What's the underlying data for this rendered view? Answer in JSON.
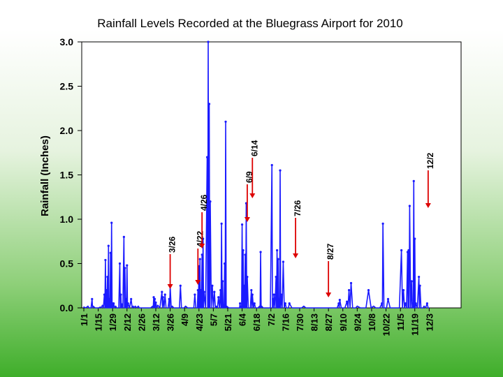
{
  "chart_data": {
    "type": "line",
    "title": "Rainfall Levels Recorded at the Bluegrass Airport for 2010",
    "ylabel": "Rainfall (Inches)",
    "xlabel": "",
    "ylim": [
      0,
      3.0
    ],
    "yticks": [
      "0.0",
      "0.5",
      "1.0",
      "1.5",
      "2.0",
      "2.5",
      "3.0"
    ],
    "ytick_values": [
      0,
      0.5,
      1.0,
      1.5,
      2.0,
      2.5,
      3.0
    ],
    "xticks": [
      "1/1",
      "1/15",
      "1/29",
      "2/12",
      "2/26",
      "3/12",
      "3/26",
      "4/9",
      "4/23",
      "5/7",
      "5/21",
      "6/4",
      "6/18",
      "7/2",
      "7/16",
      "7/30",
      "8/13",
      "8/27",
      "9/10",
      "9/24",
      "10/8",
      "10/22",
      "11/5",
      "11/19",
      "12/3"
    ],
    "grid": false,
    "legend": "none",
    "colors": {
      "series": "#1a1aff",
      "arrow": "#dd0000",
      "axis": "#000000"
    },
    "series": [
      {
        "points": [
          [
            "1/1",
            0.01
          ],
          [
            "1/5",
            0.02
          ],
          [
            "1/7",
            0.0
          ],
          [
            "1/9",
            0.1
          ],
          [
            "1/10",
            0.02
          ],
          [
            "1/14",
            0.0
          ],
          [
            "1/17",
            0.01
          ],
          [
            "1/19",
            0.03
          ],
          [
            "1/21",
            0.15
          ],
          [
            "1/22",
            0.54
          ],
          [
            "1/23",
            0.2
          ],
          [
            "1/24",
            0.35
          ],
          [
            "1/25",
            0.7
          ],
          [
            "1/26",
            0.1
          ],
          [
            "1/27",
            0.62
          ],
          [
            "1/28",
            0.96
          ],
          [
            "1/29",
            0.05
          ],
          [
            "1/30",
            0.05
          ],
          [
            "2/1",
            0.02
          ],
          [
            "2/3",
            0.0
          ],
          [
            "2/5",
            0.5
          ],
          [
            "2/6",
            0.15
          ],
          [
            "2/7",
            0.04
          ],
          [
            "2/9",
            0.8
          ],
          [
            "2/10",
            0.45
          ],
          [
            "2/11",
            0.1
          ],
          [
            "2/12",
            0.48
          ],
          [
            "2/13",
            0.05
          ],
          [
            "2/16",
            0.1
          ],
          [
            "2/18",
            0.02
          ],
          [
            "2/20",
            0.02
          ],
          [
            "2/23",
            0.02
          ],
          [
            "2/25",
            0.0
          ],
          [
            "3/1",
            0.0
          ],
          [
            "3/5",
            0.0
          ],
          [
            "3/9",
            0.02
          ],
          [
            "3/10",
            0.12
          ],
          [
            "3/11",
            0.1
          ],
          [
            "3/12",
            0.06
          ],
          [
            "3/14",
            0.03
          ],
          [
            "3/18",
            0.18
          ],
          [
            "3/19",
            0.12
          ],
          [
            "3/21",
            0.15
          ],
          [
            "3/23",
            0.0
          ],
          [
            "3/25",
            0.1
          ],
          [
            "3/26",
            0.25
          ],
          [
            "3/28",
            0.02
          ],
          [
            "3/31",
            0.0
          ],
          [
            "4/3",
            0.0
          ],
          [
            "4/5",
            0.25
          ],
          [
            "4/7",
            0.0
          ],
          [
            "4/10",
            0.02
          ],
          [
            "4/14",
            0.0
          ],
          [
            "4/17",
            0.0
          ],
          [
            "4/19",
            0.15
          ],
          [
            "4/21",
            0.0
          ],
          [
            "4/22",
            0.2
          ],
          [
            "4/23",
            0.47
          ],
          [
            "4/24",
            0.55
          ],
          [
            "4/25",
            0.2
          ],
          [
            "4/26",
            0.6
          ],
          [
            "4/27",
            0.78
          ],
          [
            "4/28",
            0.18
          ],
          [
            "5/1",
            1.7
          ],
          [
            "5/2",
            3.0
          ],
          [
            "5/3",
            2.3
          ],
          [
            "5/4",
            1.2
          ],
          [
            "5/6",
            0.25
          ],
          [
            "5/8",
            0.18
          ],
          [
            "5/10",
            0.02
          ],
          [
            "5/12",
            0.12
          ],
          [
            "5/14",
            0.2
          ],
          [
            "5/15",
            0.95
          ],
          [
            "5/16",
            0.3
          ],
          [
            "5/17",
            0.02
          ],
          [
            "5/18",
            0.5
          ],
          [
            "5/19",
            2.1
          ],
          [
            "5/20",
            0.02
          ],
          [
            "5/24",
            0.0
          ],
          [
            "5/28",
            0.0
          ],
          [
            "6/1",
            0.0
          ],
          [
            "6/2",
            0.05
          ],
          [
            "6/3",
            0.02
          ],
          [
            "6/4",
            0.94
          ],
          [
            "6/5",
            0.65
          ],
          [
            "6/6",
            0.25
          ],
          [
            "6/7",
            0.6
          ],
          [
            "6/8",
            1.18
          ],
          [
            "6/9",
            0.35
          ],
          [
            "6/11",
            0.0
          ],
          [
            "6/13",
            0.2
          ],
          [
            "6/14",
            0.15
          ],
          [
            "6/16",
            0.05
          ],
          [
            "6/18",
            0.0
          ],
          [
            "6/21",
            0.02
          ],
          [
            "6/22",
            0.63
          ],
          [
            "6/23",
            0.02
          ],
          [
            "6/26",
            0.0
          ],
          [
            "6/30",
            0.0
          ],
          [
            "7/3",
            1.61
          ],
          [
            "7/4",
            0.1
          ],
          [
            "7/5",
            0.15
          ],
          [
            "7/7",
            0.35
          ],
          [
            "7/8",
            0.65
          ],
          [
            "7/9",
            0.55
          ],
          [
            "7/10",
            0.1
          ],
          [
            "7/11",
            1.55
          ],
          [
            "7/12",
            0.15
          ],
          [
            "7/14",
            0.52
          ],
          [
            "7/16",
            0.05
          ],
          [
            "7/18",
            0.0
          ],
          [
            "7/20",
            0.05
          ],
          [
            "7/25",
            0.0
          ],
          [
            "7/30",
            0.0
          ],
          [
            "8/3",
            0.02
          ],
          [
            "8/7",
            0.0
          ],
          [
            "8/13",
            0.0
          ],
          [
            "8/20",
            0.0
          ],
          [
            "8/27",
            0.0
          ],
          [
            "9/3",
            0.0
          ],
          [
            "9/6",
            0.05
          ],
          [
            "9/7",
            0.09
          ],
          [
            "9/10",
            0.0
          ],
          [
            "9/14",
            0.07
          ],
          [
            "9/16",
            0.2
          ],
          [
            "9/18",
            0.28
          ],
          [
            "9/21",
            0.0
          ],
          [
            "9/24",
            0.02
          ],
          [
            "9/30",
            0.0
          ],
          [
            "10/5",
            0.2
          ],
          [
            "10/10",
            0.02
          ],
          [
            "10/14",
            0.0
          ],
          [
            "10/18",
            0.05
          ],
          [
            "10/19",
            0.95
          ],
          [
            "10/21",
            0.0
          ],
          [
            "10/24",
            0.1
          ],
          [
            "10/28",
            0.0
          ],
          [
            "11/2",
            0.0
          ],
          [
            "11/6",
            0.65
          ],
          [
            "11/8",
            0.2
          ],
          [
            "11/10",
            0.05
          ],
          [
            "11/12",
            0.63
          ],
          [
            "11/13",
            0.65
          ],
          [
            "11/14",
            1.15
          ],
          [
            "11/16",
            0.3
          ],
          [
            "11/17",
            0.05
          ],
          [
            "11/18",
            1.43
          ],
          [
            "11/19",
            0.78
          ],
          [
            "11/20",
            0.05
          ],
          [
            "11/23",
            0.35
          ],
          [
            "11/24",
            0.25
          ],
          [
            "11/26",
            0.0
          ],
          [
            "11/28",
            0.02
          ],
          [
            "12/1",
            0.05
          ],
          [
            "12/3",
            0.0
          ]
        ]
      }
    ],
    "annotations": [
      "3/26",
      "4/22",
      "4/26",
      "6/9",
      "6/14",
      "7/26",
      "8/27",
      "12/2"
    ]
  }
}
